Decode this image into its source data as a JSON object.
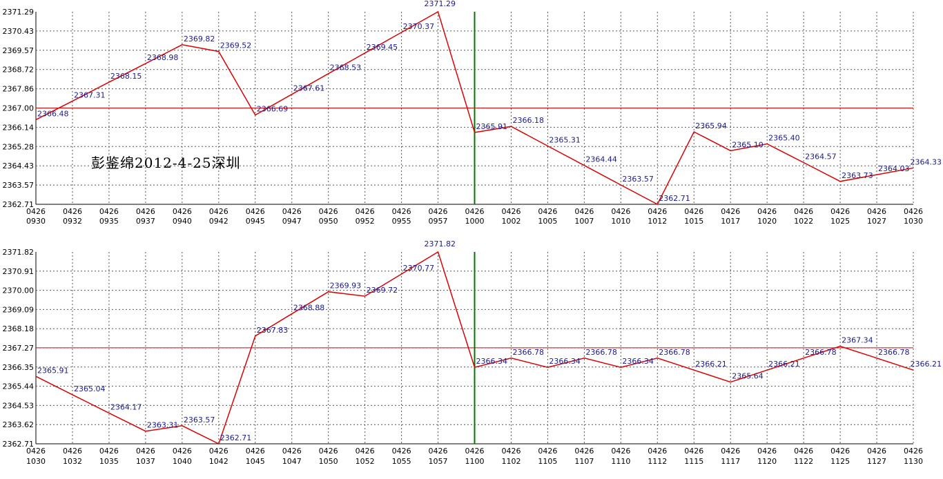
{
  "chart_data": [
    {
      "type": "line",
      "title": "",
      "xlabel": "",
      "ylabel": "",
      "annotation": "彭鉴绵2012-4-25深圳",
      "categories": [
        [
          "0426",
          "0930"
        ],
        [
          "0426",
          "0932"
        ],
        [
          "0426",
          "0935"
        ],
        [
          "0426",
          "0937"
        ],
        [
          "0426",
          "0940"
        ],
        [
          "0426",
          "0942"
        ],
        [
          "0426",
          "0945"
        ],
        [
          "0426",
          "0947"
        ],
        [
          "0426",
          "0950"
        ],
        [
          "0426",
          "0952"
        ],
        [
          "0426",
          "0955"
        ],
        [
          "0426",
          "0957"
        ],
        [
          "0426",
          "1000"
        ],
        [
          "0426",
          "1002"
        ],
        [
          "0426",
          "1005"
        ],
        [
          "0426",
          "1007"
        ],
        [
          "0426",
          "1010"
        ],
        [
          "0426",
          "1012"
        ],
        [
          "0426",
          "1015"
        ],
        [
          "0426",
          "1017"
        ],
        [
          "0426",
          "1020"
        ],
        [
          "0426",
          "1022"
        ],
        [
          "0426",
          "1025"
        ],
        [
          "0426",
          "1027"
        ],
        [
          "0426",
          "1030"
        ]
      ],
      "values": [
        2366.48,
        2367.31,
        2368.15,
        2368.98,
        2369.82,
        2369.52,
        2366.69,
        2367.61,
        2368.53,
        2369.45,
        2370.37,
        2371.29,
        2365.91,
        2366.18,
        2365.31,
        2364.44,
        2363.57,
        2362.71,
        2365.94,
        2365.1,
        2365.4,
        2364.57,
        2363.73,
        2364.03,
        2364.33
      ],
      "value_labels": [
        "2366.48",
        "2367.31",
        "2368.15",
        "2368.98",
        "2369.82",
        "2369.52",
        "2366.69",
        "2367.61",
        "2368.53",
        "2369.45",
        "2370.37",
        "2371.29",
        "2365.91",
        "2366.18",
        "2365.31",
        "2364.44",
        "2363.57",
        "2362.71",
        "2365.94",
        "2365.10",
        "2365.40",
        "2364.57",
        "2363.73",
        "2364.03",
        "2364.33"
      ],
      "yticks": [
        "2371.29",
        "2370.43",
        "2369.57",
        "2368.72",
        "2367.86",
        "2367.00",
        "2366.14",
        "2365.28",
        "2364.43",
        "2363.57",
        "2362.71"
      ],
      "ylim": [
        2362.71,
        2371.29
      ],
      "reference_line": 2367.0,
      "vertical_marker_category": "1000",
      "grid": true,
      "line_color": "#dd0000",
      "reference_color": "#dd0000",
      "marker_color": "#007700"
    },
    {
      "type": "line",
      "title": "",
      "xlabel": "",
      "ylabel": "",
      "categories": [
        [
          "0426",
          "1030"
        ],
        [
          "0426",
          "1032"
        ],
        [
          "0426",
          "1035"
        ],
        [
          "0426",
          "1037"
        ],
        [
          "0426",
          "1040"
        ],
        [
          "0426",
          "1042"
        ],
        [
          "0426",
          "1045"
        ],
        [
          "0426",
          "1047"
        ],
        [
          "0426",
          "1050"
        ],
        [
          "0426",
          "1052"
        ],
        [
          "0426",
          "1055"
        ],
        [
          "0426",
          "1057"
        ],
        [
          "0426",
          "1100"
        ],
        [
          "0426",
          "1102"
        ],
        [
          "0426",
          "1105"
        ],
        [
          "0426",
          "1107"
        ],
        [
          "0426",
          "1110"
        ],
        [
          "0426",
          "1112"
        ],
        [
          "0426",
          "1115"
        ],
        [
          "0426",
          "1117"
        ],
        [
          "0426",
          "1120"
        ],
        [
          "0426",
          "1122"
        ],
        [
          "0426",
          "1125"
        ],
        [
          "0426",
          "1127"
        ],
        [
          "0426",
          "1130"
        ]
      ],
      "values": [
        2365.91,
        2365.04,
        2364.17,
        2363.31,
        2363.57,
        2362.71,
        2367.83,
        2368.88,
        2369.93,
        2369.72,
        2370.77,
        2371.82,
        2366.34,
        2366.78,
        2366.34,
        2366.78,
        2366.34,
        2366.78,
        2366.21,
        2365.64,
        2366.21,
        2366.78,
        2367.34,
        2366.78,
        2366.21
      ],
      "value_labels": [
        "2365.91",
        "2365.04",
        "2364.17",
        "2363.31",
        "2363.57",
        "2362.71",
        "2367.83",
        "2368.88",
        "2369.93",
        "2369.72",
        "2370.77",
        "2371.82",
        "2366.34",
        "2366.78",
        "2366.34",
        "2366.78",
        "2366.34",
        "2366.78",
        "2366.21",
        "2365.64",
        "2366.21",
        "2366.78",
        "2367.34",
        "2366.78",
        "2366.21"
      ],
      "yticks": [
        "2371.82",
        "2370.91",
        "2370.00",
        "2369.09",
        "2368.18",
        "2367.27",
        "2366.35",
        "2365.44",
        "2364.53",
        "2363.62",
        "2362.71"
      ],
      "ylim": [
        2362.71,
        2371.82
      ],
      "reference_line": 2367.27,
      "vertical_marker_category": "1100",
      "grid": true,
      "line_color": "#dd0000",
      "reference_color": "#dd0000",
      "marker_color": "#007700"
    }
  ]
}
